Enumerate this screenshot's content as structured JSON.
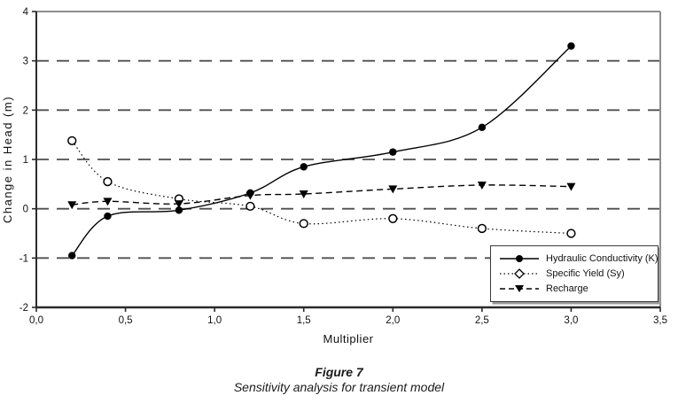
{
  "figure": {
    "caption_title": "Figure 7",
    "caption_subtitle": "Sensitivity analysis for transient model"
  },
  "chart_data": {
    "type": "line",
    "title": "",
    "xlabel": "Multiplier",
    "ylabel": "Change in Head (m)",
    "xlim": [
      0,
      3.5
    ],
    "ylim": [
      -2,
      4
    ],
    "grid": "horizontal-dashed",
    "gridline_values": [
      3,
      2,
      1,
      0,
      -1
    ],
    "legend_position": "inside-bottom-right",
    "x_ticks": [
      {
        "value": 0.0,
        "label": "0,0"
      },
      {
        "value": 0.5,
        "label": "0,5"
      },
      {
        "value": 1.0,
        "label": "1,0"
      },
      {
        "value": 1.5,
        "label": "1,5"
      },
      {
        "value": 2.0,
        "label": "2,0"
      },
      {
        "value": 2.5,
        "label": "2,5"
      },
      {
        "value": 3.0,
        "label": "3,0"
      },
      {
        "value": 3.5,
        "label": "3,5"
      }
    ],
    "y_ticks": [
      {
        "value": 4,
        "label": "4"
      },
      {
        "value": 3,
        "label": "3"
      },
      {
        "value": 2,
        "label": "2"
      },
      {
        "value": 1,
        "label": "1"
      },
      {
        "value": 0,
        "label": "0"
      },
      {
        "value": -1,
        "label": "-1"
      },
      {
        "value": -2,
        "label": "-2"
      }
    ],
    "x": [
      0.2,
      0.4,
      0.8,
      1.2,
      1.5,
      2.0,
      2.5,
      3.0
    ],
    "series": [
      {
        "name": "Hydraulic Conductivity (K)",
        "marker": "filled-circle",
        "line": "solid",
        "values": [
          -0.95,
          -0.15,
          -0.03,
          0.32,
          0.85,
          1.15,
          1.65,
          3.3
        ]
      },
      {
        "name": "Specific Yield (Sy)",
        "marker": "open-circle",
        "line": "dotted",
        "values": [
          1.38,
          0.55,
          0.2,
          0.05,
          -0.3,
          -0.2,
          -0.4,
          -0.5
        ]
      },
      {
        "name": "Recharge",
        "marker": "filled-triangle-down",
        "line": "dashed",
        "values": [
          0.08,
          0.15,
          0.1,
          0.27,
          0.3,
          0.4,
          0.48,
          0.45
        ]
      }
    ],
    "colors": {
      "series": "#000000",
      "grid": "#4f4f4f",
      "axis": "#2b2b2b",
      "frame": "#8e8e8e"
    }
  }
}
